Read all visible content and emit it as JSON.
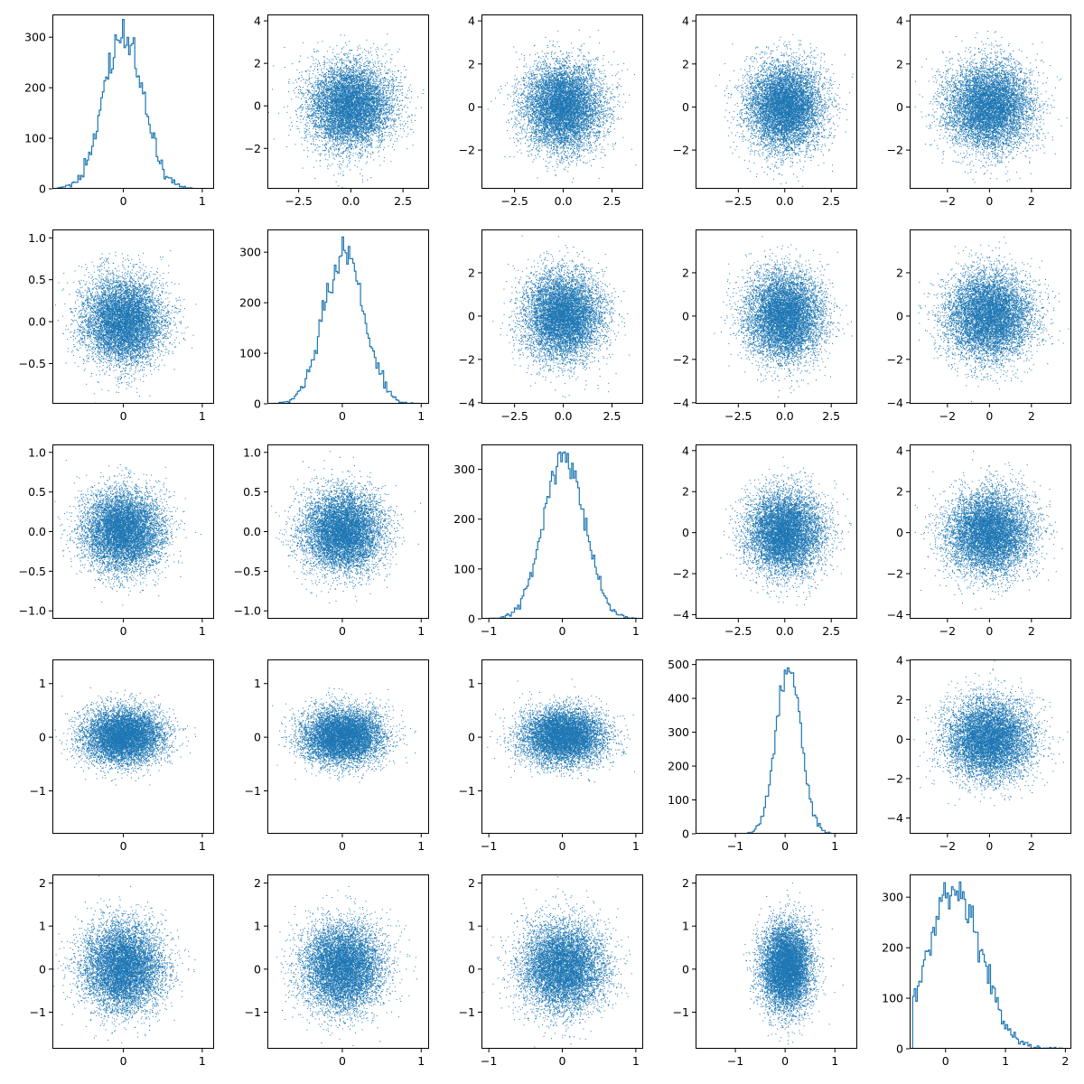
{
  "figure": {
    "rows": 5,
    "cols": 5,
    "color": "#1f77b4",
    "background": "#ffffff"
  },
  "chart_data": {
    "type": "scatter-matrix",
    "description_of_layout": "5x5 pair plot; diagonal = step histograms, off-diagonal = scatter of column variable (x) vs row variable (y)",
    "variables": [
      {
        "index": 0,
        "std": 0.25,
        "mean": 0.0,
        "hist_max": 335
      },
      {
        "index": 1,
        "std": 0.25,
        "mean": 0.02,
        "hist_max": 330
      },
      {
        "index": 2,
        "std": 0.28,
        "mean": 0.02,
        "hist_max": 335
      },
      {
        "index": 3,
        "std": 0.25,
        "mean": 0.07,
        "hist_max": 490
      },
      {
        "index": 4,
        "std": 0.45,
        "mean": 0.15,
        "hist_max": 330
      }
    ],
    "scatter_std": [
      [
        null,
        1.0,
        1.0,
        1.0,
        1.0
      ],
      [
        0.25,
        null,
        1.0,
        1.0,
        1.0
      ],
      [
        0.25,
        0.25,
        null,
        1.0,
        1.0
      ],
      [
        0.25,
        0.25,
        0.25,
        null,
        1.0
      ],
      [
        0.5,
        0.5,
        0.5,
        0.5,
        null
      ]
    ],
    "points_per_scatter": 8000,
    "panels": [
      [
        {
          "kind": "hist",
          "xlim": [
            -0.9,
            1.15
          ],
          "ylim": [
            0,
            345
          ],
          "xticks": [
            0,
            1
          ],
          "yticks": [
            0,
            100,
            200,
            300
          ]
        },
        {
          "kind": "scatter",
          "xlim": [
            -4.0,
            3.75
          ],
          "ylim": [
            -3.9,
            4.3
          ],
          "xticks": [
            -2.5,
            0.0,
            2.5
          ],
          "yticks": [
            -2,
            0,
            2,
            4
          ]
        },
        {
          "kind": "scatter",
          "xlim": [
            -4.2,
            4.1
          ],
          "ylim": [
            -3.8,
            4.3
          ],
          "xticks": [
            -2.5,
            0.0,
            2.5
          ],
          "yticks": [
            -2,
            0,
            2,
            4
          ]
        },
        {
          "kind": "scatter",
          "xlim": [
            -4.8,
            3.9
          ],
          "ylim": [
            -3.8,
            4.3
          ],
          "xticks": [
            -2.5,
            0.0,
            2.5
          ],
          "yticks": [
            -2,
            0,
            2,
            4
          ]
        },
        {
          "kind": "scatter",
          "xlim": [
            -3.8,
            3.9
          ],
          "ylim": [
            -3.8,
            4.3
          ],
          "xticks": [
            -2,
            0,
            2
          ],
          "yticks": [
            -2,
            0,
            2,
            4
          ]
        }
      ],
      [
        {
          "kind": "scatter",
          "xlim": [
            -0.9,
            1.15
          ],
          "ylim": [
            -0.98,
            1.1
          ],
          "xticks": [
            0,
            1
          ],
          "yticks": [
            -0.5,
            0.0,
            0.5,
            1.0
          ]
        },
        {
          "kind": "hist",
          "xlim": [
            -0.95,
            1.1
          ],
          "ylim": [
            0,
            345
          ],
          "xticks": [
            0,
            1
          ],
          "yticks": [
            0,
            100,
            200,
            300
          ]
        },
        {
          "kind": "scatter",
          "xlim": [
            -4.2,
            4.1
          ],
          "ylim": [
            -4.05,
            4.0
          ],
          "xticks": [
            -2.5,
            0.0,
            2.5
          ],
          "yticks": [
            -4,
            -2,
            0,
            2
          ]
        },
        {
          "kind": "scatter",
          "xlim": [
            -4.8,
            3.9
          ],
          "ylim": [
            -4.05,
            4.0
          ],
          "xticks": [
            -2.5,
            0.0,
            2.5
          ],
          "yticks": [
            -4,
            -2,
            0,
            2
          ]
        },
        {
          "kind": "scatter",
          "xlim": [
            -3.8,
            3.9
          ],
          "ylim": [
            -4.05,
            4.0
          ],
          "xticks": [
            -2,
            0,
            2
          ],
          "yticks": [
            -4,
            -2,
            0,
            2
          ]
        }
      ],
      [
        {
          "kind": "scatter",
          "xlim": [
            -0.9,
            1.15
          ],
          "ylim": [
            -1.1,
            1.1
          ],
          "xticks": [
            0,
            1
          ],
          "yticks": [
            -1.0,
            -0.5,
            0.0,
            0.5,
            1.0
          ]
        },
        {
          "kind": "scatter",
          "xlim": [
            -0.95,
            1.1
          ],
          "ylim": [
            -1.1,
            1.1
          ],
          "xticks": [
            0,
            1
          ],
          "yticks": [
            -1.0,
            -0.5,
            0.0,
            0.5,
            1.0
          ]
        },
        {
          "kind": "hist",
          "xlim": [
            -1.1,
            1.1
          ],
          "ylim": [
            0,
            350
          ],
          "xticks": [
            -1,
            0,
            1
          ],
          "yticks": [
            0,
            100,
            200,
            300
          ]
        },
        {
          "kind": "scatter",
          "xlim": [
            -4.8,
            3.9
          ],
          "ylim": [
            -4.2,
            4.3
          ],
          "xticks": [
            -2.5,
            0.0,
            2.5
          ],
          "yticks": [
            -4,
            -2,
            0,
            2,
            4
          ]
        },
        {
          "kind": "scatter",
          "xlim": [
            -3.8,
            3.9
          ],
          "ylim": [
            -4.2,
            4.3
          ],
          "xticks": [
            -2,
            0,
            2
          ],
          "yticks": [
            -4,
            -2,
            0,
            2,
            4
          ]
        }
      ],
      [
        {
          "kind": "scatter",
          "xlim": [
            -0.9,
            1.15
          ],
          "ylim": [
            -1.8,
            1.45
          ],
          "xticks": [
            0,
            1
          ],
          "yticks": [
            -1,
            0,
            1
          ]
        },
        {
          "kind": "scatter",
          "xlim": [
            -0.95,
            1.1
          ],
          "ylim": [
            -1.8,
            1.45
          ],
          "xticks": [
            0,
            1
          ],
          "yticks": [
            -1,
            0,
            1
          ]
        },
        {
          "kind": "scatter",
          "xlim": [
            -1.1,
            1.1
          ],
          "ylim": [
            -1.8,
            1.45
          ],
          "xticks": [
            -1,
            0,
            1
          ],
          "yticks": [
            -1,
            0,
            1
          ]
        },
        {
          "kind": "hist",
          "xlim": [
            -1.8,
            1.45
          ],
          "ylim": [
            0,
            515
          ],
          "xticks": [
            -1,
            0,
            1
          ],
          "yticks": [
            0,
            100,
            200,
            300,
            400,
            500
          ]
        },
        {
          "kind": "scatter",
          "xlim": [
            -3.8,
            3.9
          ],
          "ylim": [
            -4.8,
            4.05
          ],
          "xticks": [
            -2,
            0,
            2
          ],
          "yticks": [
            -4,
            -2,
            0,
            2,
            4
          ]
        }
      ],
      [
        {
          "kind": "scatter",
          "xlim": [
            -0.9,
            1.15
          ],
          "ylim": [
            -1.85,
            2.2
          ],
          "xticks": [
            0,
            1
          ],
          "yticks": [
            -1,
            0,
            1,
            2
          ]
        },
        {
          "kind": "scatter",
          "xlim": [
            -0.95,
            1.1
          ],
          "ylim": [
            -1.85,
            2.2
          ],
          "xticks": [
            0,
            1
          ],
          "yticks": [
            -1,
            0,
            1,
            2
          ]
        },
        {
          "kind": "scatter",
          "xlim": [
            -1.1,
            1.1
          ],
          "ylim": [
            -1.85,
            2.2
          ],
          "xticks": [
            -1,
            0,
            1
          ],
          "yticks": [
            -1,
            0,
            1,
            2
          ]
        },
        {
          "kind": "scatter",
          "xlim": [
            -1.8,
            1.45
          ],
          "ylim": [
            -1.85,
            2.2
          ],
          "xticks": [
            -1,
            0,
            1
          ],
          "yticks": [
            -1,
            0,
            1,
            2
          ]
        },
        {
          "kind": "hist",
          "xlim": [
            -0.6,
            2.1
          ],
          "ylim": [
            0,
            345
          ],
          "xticks": [
            0,
            1,
            2
          ],
          "yticks": [
            0,
            100,
            200,
            300
          ]
        }
      ]
    ]
  }
}
